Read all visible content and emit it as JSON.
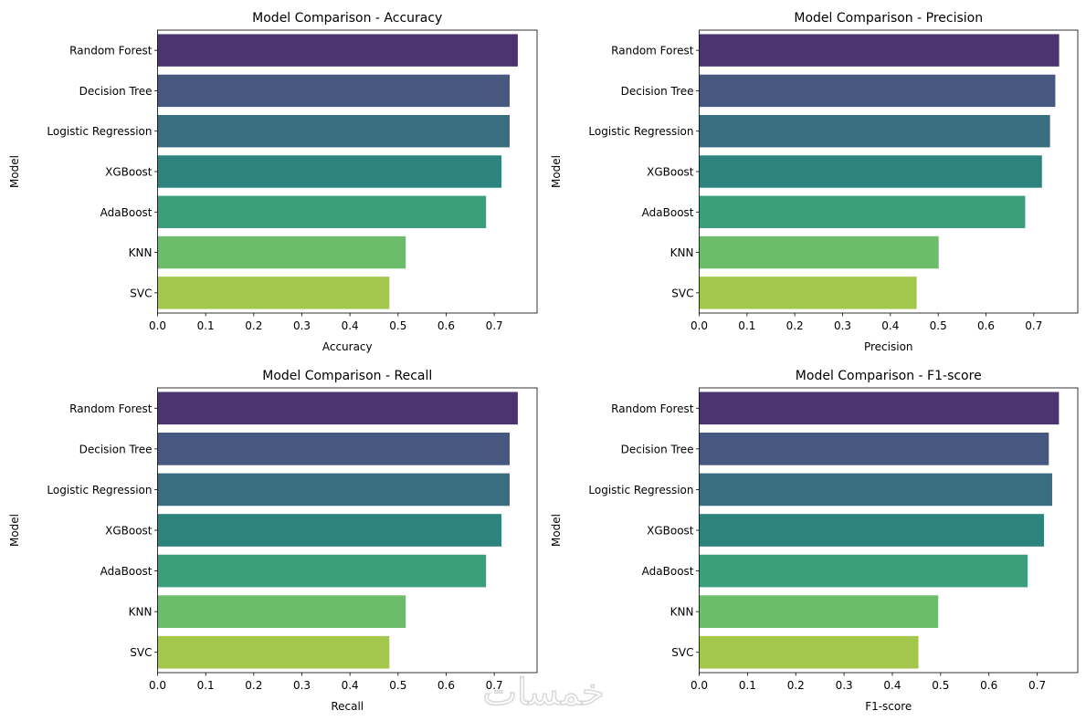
{
  "chart_data": [
    {
      "type": "bar",
      "orientation": "horizontal",
      "title": "Model Comparison - Accuracy",
      "xlabel": "Accuracy",
      "ylabel": "Model",
      "categories": [
        "Random Forest",
        "Decision Tree",
        "Logistic Regression",
        "XGBoost",
        "AdaBoost",
        "KNN",
        "SVC"
      ],
      "values": [
        0.749,
        0.732,
        0.732,
        0.715,
        0.683,
        0.516,
        0.482
      ],
      "xlim": [
        0,
        0.789
      ],
      "xticks": [
        "0.0",
        "0.1",
        "0.2",
        "0.3",
        "0.4",
        "0.5",
        "0.6",
        "0.7"
      ],
      "grid": false
    },
    {
      "type": "bar",
      "orientation": "horizontal",
      "title": "Model Comparison - Precision",
      "xlabel": "Precision",
      "ylabel": "Model",
      "categories": [
        "Random Forest",
        "Decision Tree",
        "Logistic Regression",
        "XGBoost",
        "AdaBoost",
        "KNN",
        "SVC"
      ],
      "values": [
        0.753,
        0.745,
        0.734,
        0.717,
        0.682,
        0.501,
        0.455
      ],
      "xlim": [
        0,
        0.792
      ],
      "xticks": [
        "0.0",
        "0.1",
        "0.2",
        "0.3",
        "0.4",
        "0.5",
        "0.6",
        "0.7"
      ],
      "grid": false
    },
    {
      "type": "bar",
      "orientation": "horizontal",
      "title": "Model Comparison - Recall",
      "xlabel": "Recall",
      "ylabel": "Model",
      "categories": [
        "Random Forest",
        "Decision Tree",
        "Logistic Regression",
        "XGBoost",
        "AdaBoost",
        "KNN",
        "SVC"
      ],
      "values": [
        0.749,
        0.732,
        0.732,
        0.715,
        0.683,
        0.516,
        0.482
      ],
      "xlim": [
        0,
        0.789
      ],
      "xticks": [
        "0.0",
        "0.1",
        "0.2",
        "0.3",
        "0.4",
        "0.5",
        "0.6",
        "0.7"
      ],
      "grid": false
    },
    {
      "type": "bar",
      "orientation": "horizontal",
      "title": "Model Comparison - F1-score",
      "xlabel": "F1-score",
      "ylabel": "Model",
      "categories": [
        "Random Forest",
        "Decision Tree",
        "Logistic Regression",
        "XGBoost",
        "AdaBoost",
        "KNN",
        "SVC"
      ],
      "values": [
        0.745,
        0.724,
        0.731,
        0.714,
        0.68,
        0.495,
        0.454
      ],
      "xlim": [
        0,
        0.784
      ],
      "xticks": [
        "0.0",
        "0.1",
        "0.2",
        "0.3",
        "0.4",
        "0.5",
        "0.6",
        "0.7"
      ],
      "grid": false
    }
  ],
  "palette": [
    "#4a3570",
    "#46587f",
    "#386e80",
    "#2d847e",
    "#3b9f7c",
    "#6bbd6c",
    "#a2c74a"
  ],
  "watermark": "خمسات"
}
